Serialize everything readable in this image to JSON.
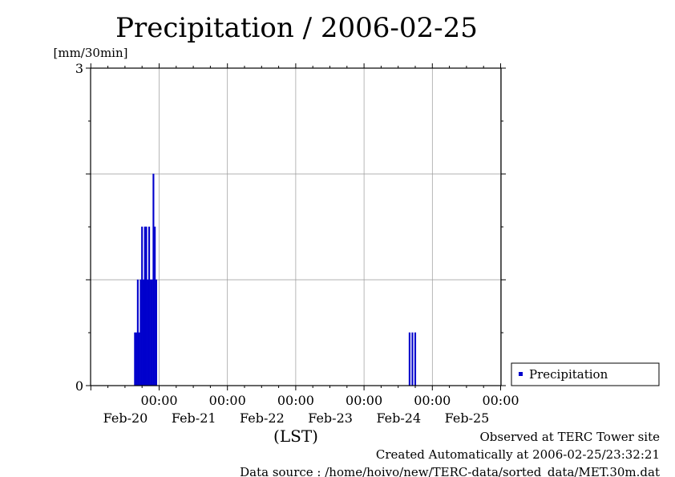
{
  "chart_data": {
    "type": "bar",
    "title": "Precipitation / 2006-02-25",
    "ylabel": "[mm/30min]",
    "xlabel": "(LST)",
    "ylim": [
      0,
      3
    ],
    "y_ticks": [
      "0",
      "3"
    ],
    "x_ticks": [
      {
        "time": "00:00",
        "date": "Feb-20"
      },
      {
        "time": "00:00",
        "date": "Feb-21"
      },
      {
        "time": "00:00",
        "date": "Feb-22"
      },
      {
        "time": "00:00",
        "date": "Feb-23"
      },
      {
        "time": "00:00",
        "date": "Feb-24"
      },
      {
        "time": "00:00",
        "date": "Feb-25"
      }
    ],
    "grid": true,
    "legend_position": "right",
    "series": [
      {
        "name": "Precipitation",
        "color": "#0000cc",
        "points": [
          {
            "t": "Feb-20 15:30",
            "v": 0.5
          },
          {
            "t": "Feb-20 16:00",
            "v": 0.5
          },
          {
            "t": "Feb-20 16:30",
            "v": 1.0
          },
          {
            "t": "Feb-20 17:00",
            "v": 0.5
          },
          {
            "t": "Feb-20 17:30",
            "v": 1.0
          },
          {
            "t": "Feb-20 18:00",
            "v": 1.5
          },
          {
            "t": "Feb-20 18:30",
            "v": 1.0
          },
          {
            "t": "Feb-20 19:00",
            "v": 1.5
          },
          {
            "t": "Feb-20 19:30",
            "v": 1.5
          },
          {
            "t": "Feb-20 20:00",
            "v": 1.0
          },
          {
            "t": "Feb-20 20:30",
            "v": 1.5
          },
          {
            "t": "Feb-20 21:00",
            "v": 1.0
          },
          {
            "t": "Feb-20 21:30",
            "v": 1.0
          },
          {
            "t": "Feb-20 22:00",
            "v": 2.0
          },
          {
            "t": "Feb-20 22:30",
            "v": 1.5
          },
          {
            "t": "Feb-20 23:00",
            "v": 1.0
          },
          {
            "t": "Feb-24 16:00",
            "v": 0.5
          },
          {
            "t": "Feb-24 17:00",
            "v": 0.5
          },
          {
            "t": "Feb-24 18:00",
            "v": 0.5
          }
        ]
      }
    ]
  },
  "footer": {
    "observed": "Observed at TERC Tower site",
    "created": "Created Automatically at 2006-02-25/23:32:21",
    "source": "Data source : /home/hoivo/new/TERC-data/sorted_data/MET.30m.dat"
  }
}
